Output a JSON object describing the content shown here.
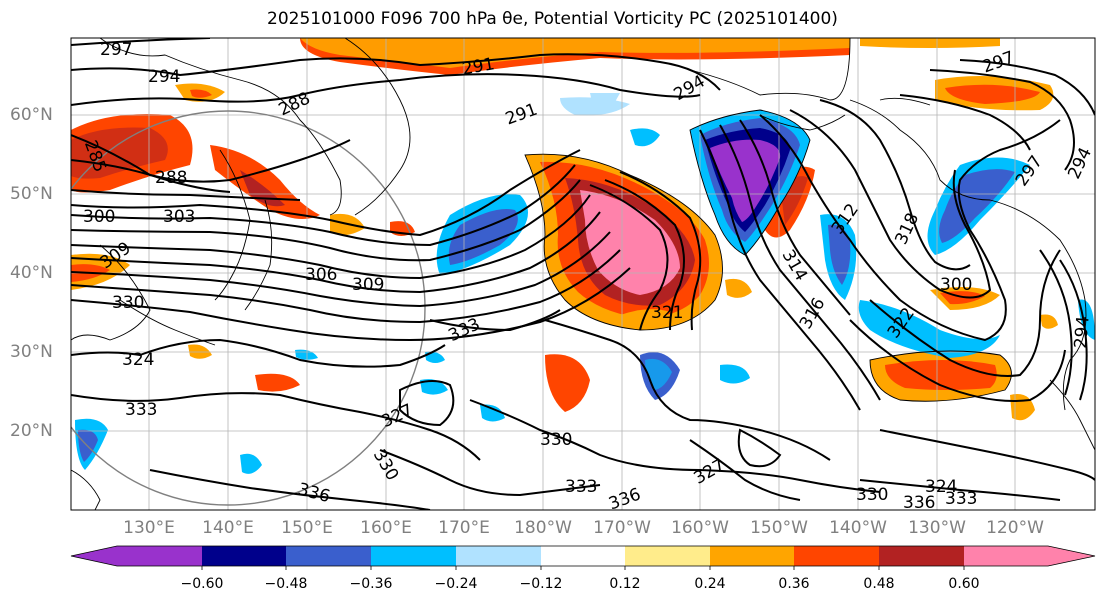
{
  "title": "2025101000 F096 700 hPa θe, Potential Vorticity PC (2025101400)",
  "lat_labels": [
    "60°N",
    "50°N",
    "40°N",
    "30°N",
    "20°N"
  ],
  "lon_labels": [
    "130°E",
    "140°E",
    "150°E",
    "160°E",
    "170°E",
    "180°W",
    "170°W",
    "160°W",
    "150°W",
    "140°W",
    "130°W",
    "120°W"
  ],
  "contour_labels": [
    "297",
    "294",
    "291",
    "294",
    "297",
    "288",
    "291",
    "285",
    "288",
    "294",
    "297",
    "300",
    "303",
    "309",
    "306",
    "309",
    "312",
    "318",
    "314",
    "316",
    "321",
    "300",
    "322",
    "330",
    "333",
    "324",
    "333",
    "327",
    "330",
    "330",
    "333",
    "336",
    "336",
    "327",
    "330",
    "324",
    "333",
    "336",
    "294"
  ],
  "colorbar": {
    "ticks": [
      "−0.60",
      "−0.48",
      "−0.36",
      "−0.24",
      "−0.12",
      "0.12",
      "0.24",
      "0.36",
      "0.48",
      "0.60"
    ],
    "colors": [
      "#9932cc",
      "#00008b",
      "#3a5fcd",
      "#00bfff",
      "#b0e2ff",
      "#ffffff",
      "#ffec8b",
      "#ffa500",
      "#ff4500",
      "#b22222",
      "#ff82ab"
    ]
  },
  "colors": {
    "pv_purple": "#9932cc",
    "pv_navy": "#00008b",
    "pv_blue": "#3a5fcd",
    "pv_cyan": "#00bfff",
    "pv_lightblue": "#b0e2ff",
    "pv_yellow": "#ffec8b",
    "pv_orange": "#ffa500",
    "pv_redorange": "#ff4500",
    "pv_darkred": "#b22222",
    "pv_pink": "#ff82ab"
  }
}
